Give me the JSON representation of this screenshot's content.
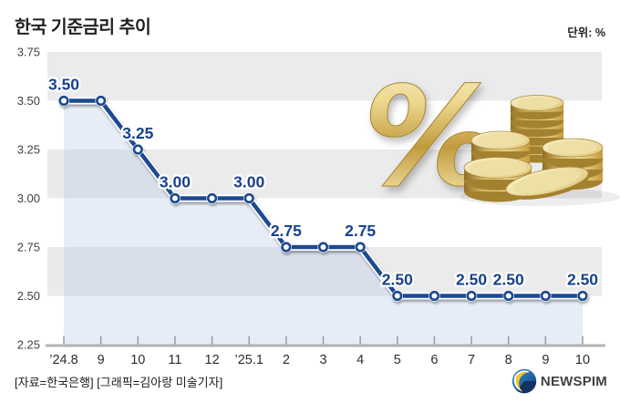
{
  "header": {
    "title": "한국 기준금리 추이",
    "unit_label": "단위: %"
  },
  "chart_data": {
    "type": "line",
    "title": "한국 기준금리 추이",
    "unit": "%",
    "x_labels": [
      "’24.8",
      "9",
      "10",
      "11",
      "12",
      "’25.1",
      "2",
      "3",
      "4",
      "5",
      "6",
      "7",
      "8",
      "9",
      "10"
    ],
    "values": [
      3.5,
      3.5,
      3.25,
      3.0,
      3.0,
      3.0,
      2.75,
      2.75,
      2.75,
      2.5,
      2.5,
      2.5,
      2.5,
      2.5,
      2.5
    ],
    "point_labels": [
      "3.50",
      "",
      "3.25",
      "3.00",
      "",
      "3.00",
      "2.75",
      "",
      "2.75",
      "2.50",
      "",
      "2.50",
      "2.50",
      "",
      "2.50"
    ],
    "y_ticks": [
      2.25,
      2.5,
      2.75,
      3.0,
      3.25,
      3.5,
      3.75
    ],
    "y_tick_labels": [
      "2.25",
      "2.50",
      "2.75",
      "3.00",
      "3.25",
      "3.50",
      "3.75"
    ],
    "ylim": [
      2.25,
      3.75
    ],
    "grid": "alternating horizontal gray bands",
    "legend": "none",
    "marker": "open-circle",
    "colors": {
      "line": "#1c4a90",
      "point_label": "#17418c",
      "band": "#ebebec",
      "area_fill": "rgba(180,200,230,0.32)",
      "axis": "#b3b3b6",
      "tick": "#9b9b9b",
      "x_label": "#2d2d2d",
      "y_label": "#414141"
    }
  },
  "decoration": {
    "percent_glyph": "%"
  },
  "footer": {
    "credit": "[자료=한국은행] [그래픽=김아랑 미술기자]",
    "logo_text": "NEWSPIM"
  }
}
